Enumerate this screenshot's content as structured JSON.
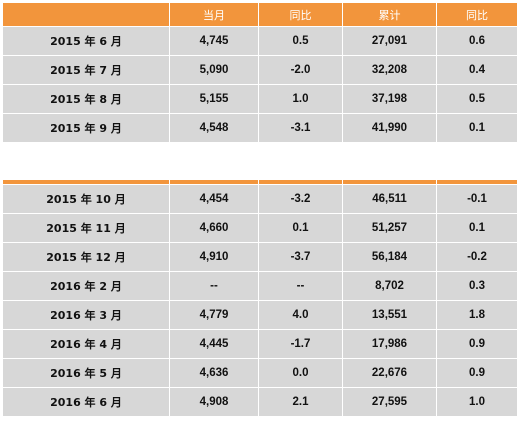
{
  "chart_data": {
    "type": "table",
    "columns": [
      "",
      "当月",
      "同比",
      "累计",
      "同比"
    ],
    "rows_part1": [
      [
        "2015 年 6 月",
        "4,745",
        "0.5",
        "27,091",
        "0.6"
      ],
      [
        "2015 年 7 月",
        "5,090",
        "-2.0",
        "32,208",
        "0.4"
      ],
      [
        "2015 年 8 月",
        "5,155",
        "1.0",
        "37,198",
        "0.5"
      ],
      [
        "2015 年 9 月",
        "4,548",
        "-3.1",
        "41,990",
        "0.1"
      ]
    ],
    "rows_part2": [
      [
        "2015 年 10 月",
        "4,454",
        "-3.2",
        "46,511",
        "-0.1"
      ],
      [
        "2015 年 11 月",
        "4,660",
        "0.1",
        "51,257",
        "0.1"
      ],
      [
        "2015 年 12 月",
        "4,910",
        "-3.7",
        "56,184",
        "-0.2"
      ],
      [
        "2016 年 2 月",
        "--",
        "--",
        "8,702",
        "0.3"
      ],
      [
        "2016 年 3 月",
        "4,779",
        "4.0",
        "13,551",
        "1.8"
      ],
      [
        "2016 年 4 月",
        "4,445",
        "-1.7",
        "17,986",
        "0.9"
      ],
      [
        "2016 年 5 月",
        "4,636",
        "0.0",
        "22,676",
        "0.9"
      ],
      [
        "2016 年 6 月",
        "4,908",
        "2.1",
        "27,595",
        "1.0"
      ]
    ]
  },
  "colors": {
    "header_bg": "#f2953c",
    "header_text": "#ffffff",
    "cell_bg": "#d7d7d7",
    "separator": "#ffffff"
  }
}
